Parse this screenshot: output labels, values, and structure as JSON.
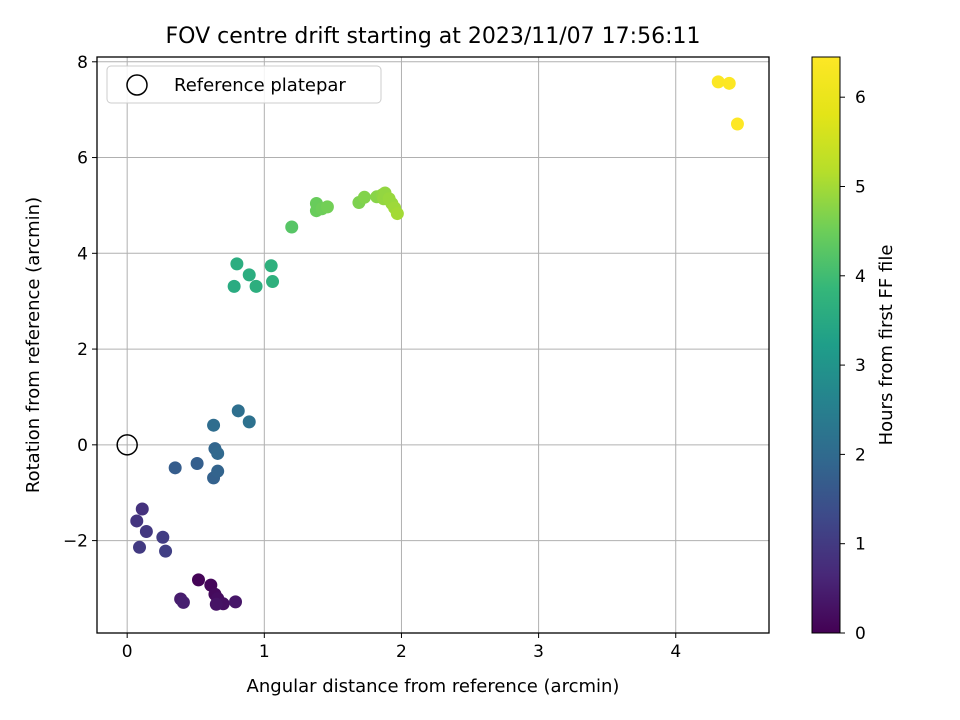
{
  "chart_data": {
    "type": "scatter",
    "title": "FOV centre drift starting at 2023/11/07 17:56:11",
    "xlabel": "Angular distance from reference (arcmin)",
    "ylabel": "Rotation from reference (arcmin)",
    "xlim": [
      -0.22,
      4.68
    ],
    "ylim": [
      -3.93,
      8.1
    ],
    "xticks": [
      0,
      1,
      2,
      3,
      4
    ],
    "yticks": [
      -2,
      0,
      2,
      4,
      6,
      8
    ],
    "xtick_labels": [
      "0",
      "1",
      "2",
      "3",
      "4"
    ],
    "ytick_labels": [
      "−2",
      "0",
      "2",
      "4",
      "6",
      "8"
    ],
    "grid": true,
    "legend": {
      "location": "top-left",
      "entries": [
        {
          "label": "Reference platepar",
          "marker": "open-circle"
        }
      ]
    },
    "reference_point": {
      "x": 0,
      "y": 0
    },
    "colorbar": {
      "label": "Hours from first FF file",
      "colormap": "viridis",
      "range": [
        0,
        6.45
      ],
      "ticks": [
        0,
        1,
        2,
        3,
        4,
        5,
        6
      ],
      "tick_labels": [
        "0",
        "1",
        "2",
        "3",
        "4",
        "5",
        "6"
      ]
    },
    "points": [
      {
        "x": 0.52,
        "y": -2.82,
        "hours": 0.05
      },
      {
        "x": 0.61,
        "y": -2.93,
        "hours": 0.1
      },
      {
        "x": 0.64,
        "y": -3.12,
        "hours": 0.15
      },
      {
        "x": 0.66,
        "y": -3.21,
        "hours": 0.2
      },
      {
        "x": 0.7,
        "y": -3.32,
        "hours": 0.25
      },
      {
        "x": 0.65,
        "y": -3.33,
        "hours": 0.3
      },
      {
        "x": 0.79,
        "y": -3.28,
        "hours": 0.35
      },
      {
        "x": 0.39,
        "y": -3.22,
        "hours": 0.45
      },
      {
        "x": 0.41,
        "y": -3.29,
        "hours": 0.5
      },
      {
        "x": 0.11,
        "y": -1.34,
        "hours": 0.85
      },
      {
        "x": 0.07,
        "y": -1.59,
        "hours": 0.9
      },
      {
        "x": 0.14,
        "y": -1.81,
        "hours": 0.95
      },
      {
        "x": 0.09,
        "y": -2.14,
        "hours": 1.0
      },
      {
        "x": 0.26,
        "y": -1.93,
        "hours": 1.05
      },
      {
        "x": 0.28,
        "y": -2.22,
        "hours": 1.1
      },
      {
        "x": 0.35,
        "y": -0.48,
        "hours": 1.7
      },
      {
        "x": 0.51,
        "y": -0.39,
        "hours": 1.75
      },
      {
        "x": 0.63,
        "y": -0.69,
        "hours": 1.8
      },
      {
        "x": 0.66,
        "y": -0.55,
        "hours": 1.85
      },
      {
        "x": 0.64,
        "y": -0.08,
        "hours": 1.9
      },
      {
        "x": 0.66,
        "y": -0.18,
        "hours": 1.95
      },
      {
        "x": 0.63,
        "y": 0.41,
        "hours": 2.05
      },
      {
        "x": 0.81,
        "y": 0.71,
        "hours": 2.1
      },
      {
        "x": 0.89,
        "y": 0.48,
        "hours": 2.15
      },
      {
        "x": 0.78,
        "y": 3.31,
        "hours": 3.55
      },
      {
        "x": 0.8,
        "y": 3.78,
        "hours": 3.6
      },
      {
        "x": 0.89,
        "y": 3.55,
        "hours": 3.6
      },
      {
        "x": 0.94,
        "y": 3.31,
        "hours": 3.65
      },
      {
        "x": 1.05,
        "y": 3.74,
        "hours": 3.7
      },
      {
        "x": 1.06,
        "y": 3.41,
        "hours": 3.7
      },
      {
        "x": 1.2,
        "y": 4.55,
        "hours": 4.25
      },
      {
        "x": 1.38,
        "y": 4.89,
        "hours": 4.45
      },
      {
        "x": 1.38,
        "y": 5.04,
        "hours": 4.45
      },
      {
        "x": 1.42,
        "y": 4.93,
        "hours": 4.5
      },
      {
        "x": 1.46,
        "y": 4.97,
        "hours": 4.55
      },
      {
        "x": 1.69,
        "y": 5.06,
        "hours": 4.65
      },
      {
        "x": 1.73,
        "y": 5.17,
        "hours": 4.7
      },
      {
        "x": 1.82,
        "y": 5.18,
        "hours": 4.75
      },
      {
        "x": 1.86,
        "y": 5.22,
        "hours": 4.8
      },
      {
        "x": 1.87,
        "y": 5.14,
        "hours": 4.85
      },
      {
        "x": 1.88,
        "y": 5.26,
        "hours": 4.85
      },
      {
        "x": 1.91,
        "y": 5.14,
        "hours": 4.9
      },
      {
        "x": 1.93,
        "y": 5.04,
        "hours": 4.9
      },
      {
        "x": 1.95,
        "y": 4.95,
        "hours": 4.95
      },
      {
        "x": 1.97,
        "y": 4.83,
        "hours": 5.0
      },
      {
        "x": 4.31,
        "y": 7.58,
        "hours": 6.4
      },
      {
        "x": 4.39,
        "y": 7.55,
        "hours": 6.42
      },
      {
        "x": 4.45,
        "y": 6.7,
        "hours": 6.45
      }
    ]
  }
}
